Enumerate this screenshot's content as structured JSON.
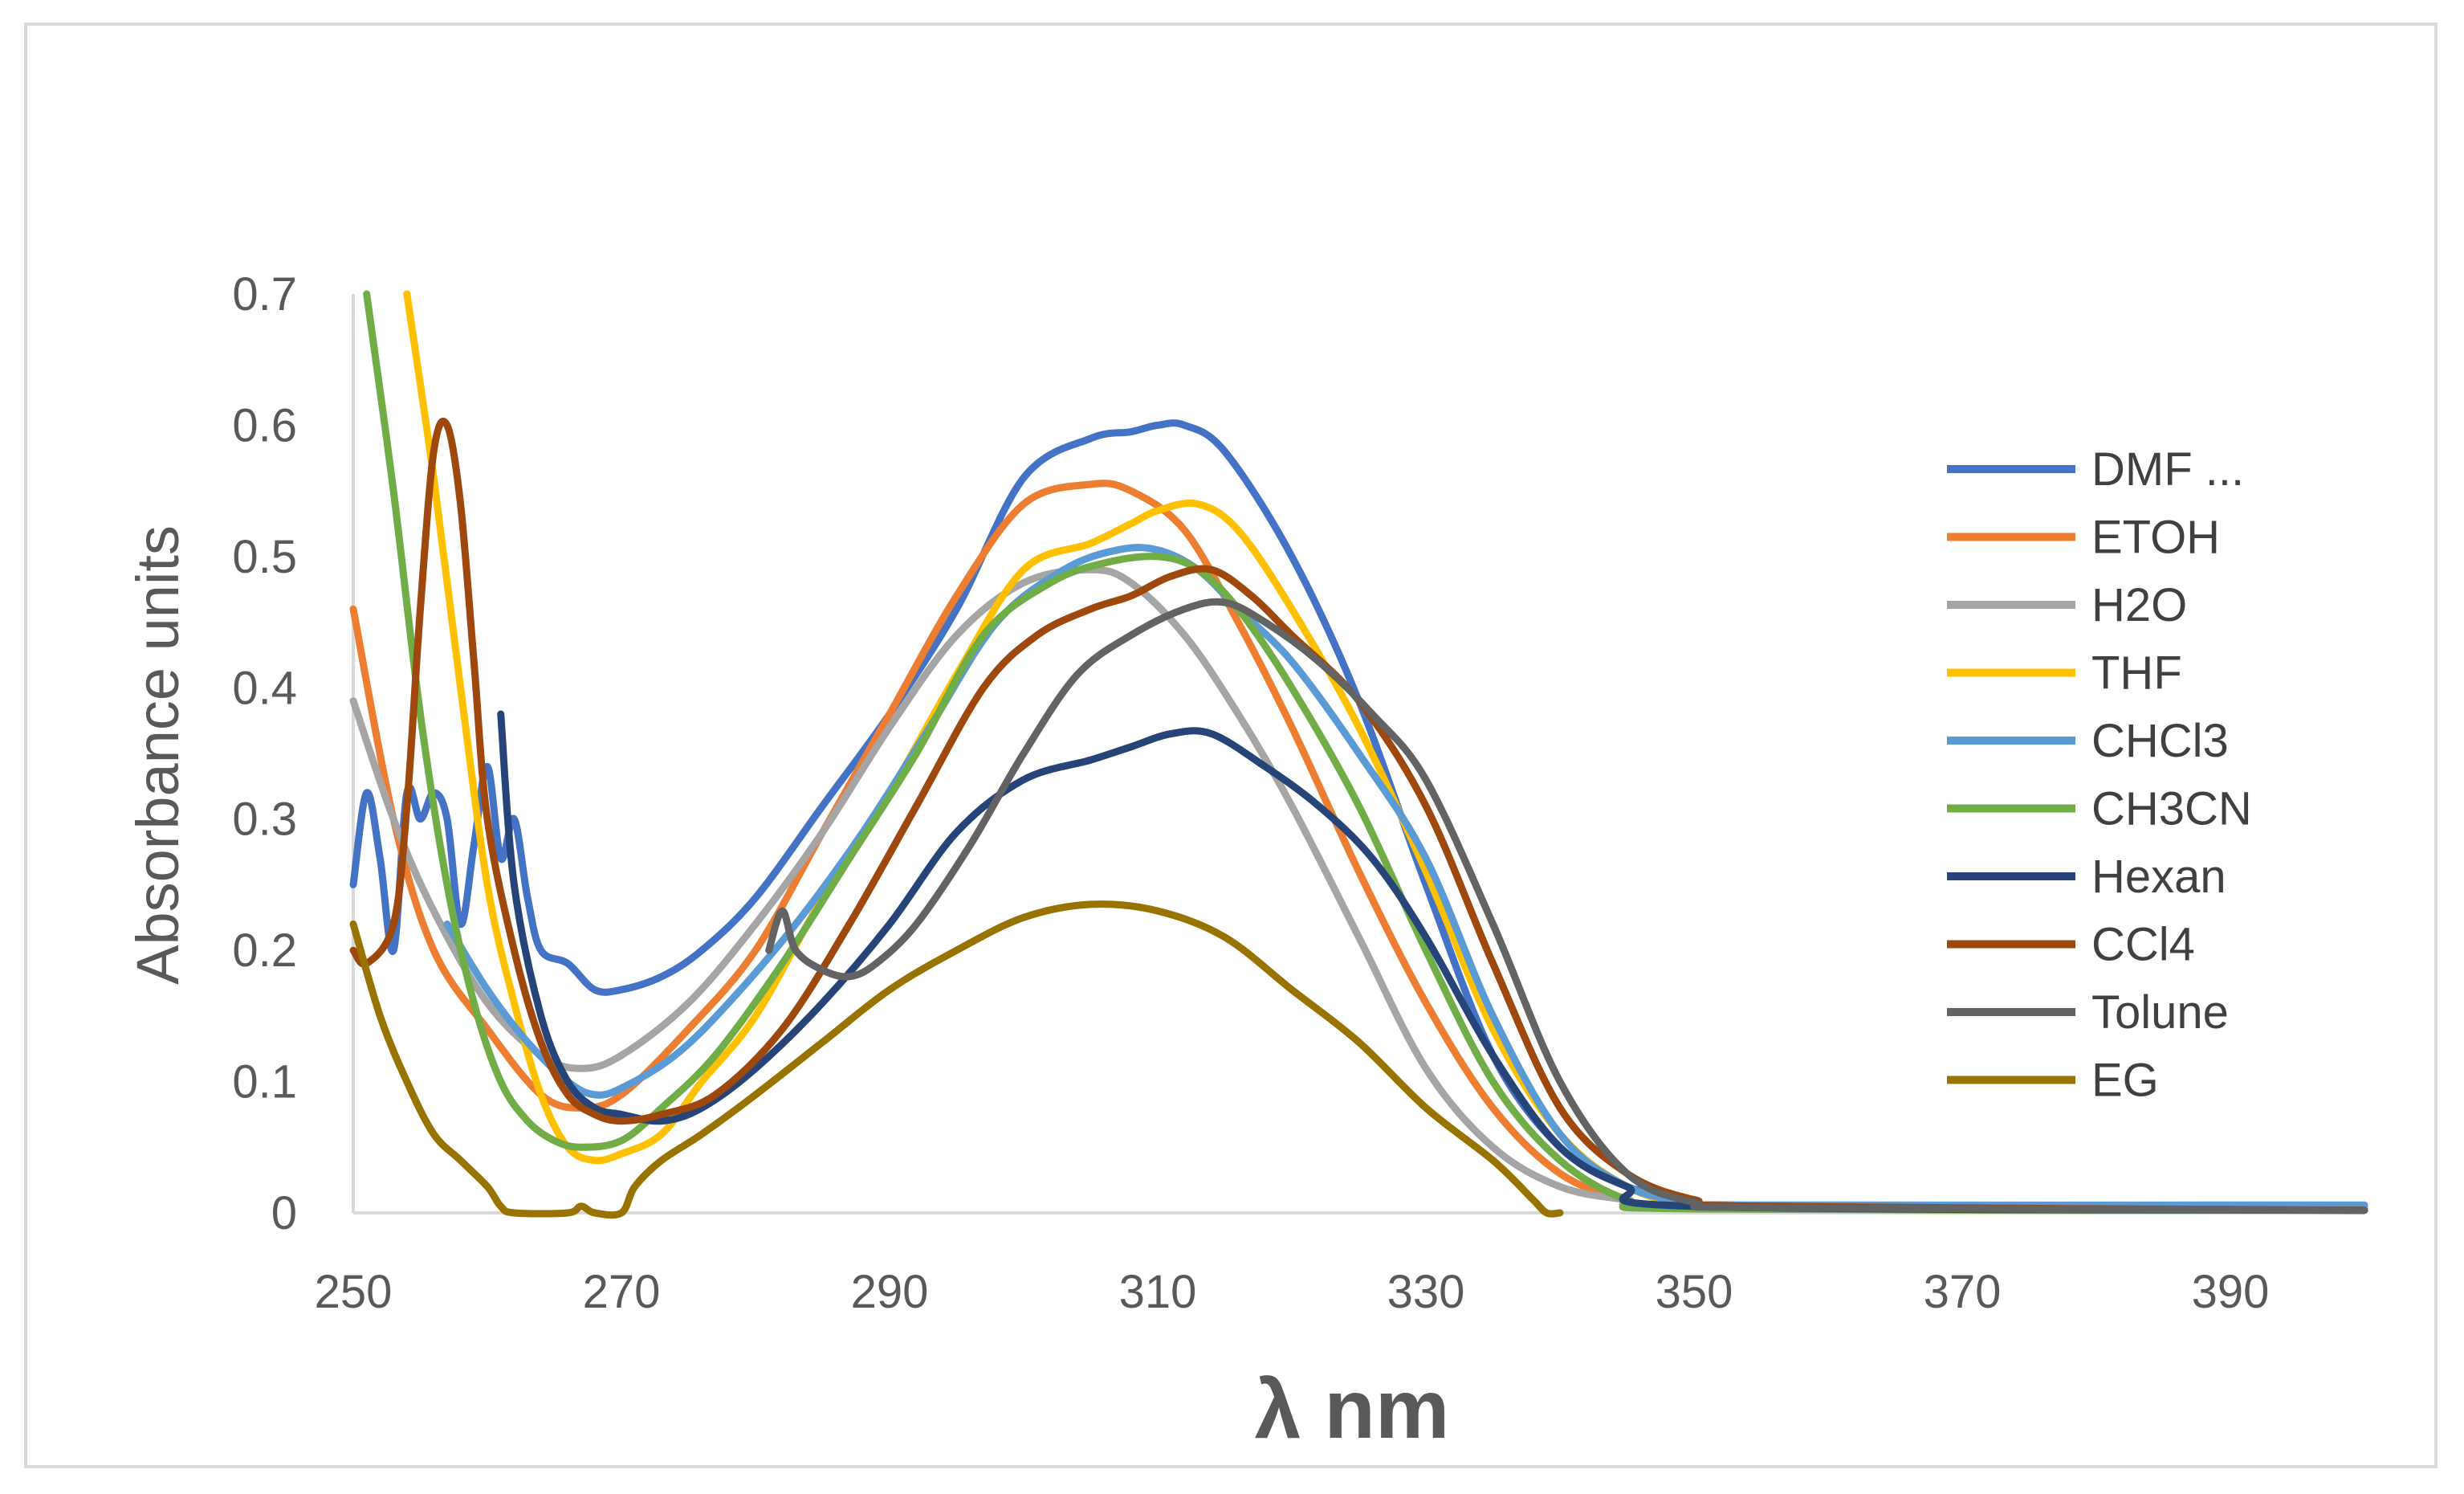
{
  "chart_data": {
    "type": "line",
    "title": "",
    "xlabel": "λ nm",
    "ylabel": "Absorbance units",
    "xlim": [
      250,
      400
    ],
    "ylim": [
      0,
      0.7
    ],
    "xticks": [
      250,
      270,
      290,
      310,
      330,
      350,
      370,
      390
    ],
    "yticks": [
      0,
      0.1,
      0.2,
      0.3,
      0.4,
      0.5,
      0.6,
      0.7
    ],
    "xtick_labels": [
      "250",
      "270",
      "290",
      "310",
      "330",
      "350",
      "370",
      "390"
    ],
    "ytick_labels": [
      "0",
      "0.1",
      "0.2",
      "0.3",
      "0.4",
      "0.5",
      "0.6",
      "0.7"
    ],
    "legend_position": "right",
    "series": [
      {
        "name": "DMF ...",
        "color": "#4472C4",
        "points": [
          [
            250,
            0.25
          ],
          [
            251,
            0.32
          ],
          [
            252,
            0.27
          ],
          [
            253,
            0.2
          ],
          [
            254,
            0.32
          ],
          [
            255,
            0.3
          ],
          [
            256,
            0.32
          ],
          [
            257,
            0.3
          ],
          [
            258,
            0.22
          ],
          [
            259,
            0.28
          ],
          [
            260,
            0.34
          ],
          [
            261,
            0.27
          ],
          [
            262,
            0.3
          ],
          [
            263,
            0.24
          ],
          [
            264,
            0.2
          ],
          [
            266,
            0.19
          ],
          [
            268,
            0.17
          ],
          [
            270,
            0.17
          ],
          [
            273,
            0.18
          ],
          [
            276,
            0.2
          ],
          [
            280,
            0.24
          ],
          [
            285,
            0.31
          ],
          [
            290,
            0.38
          ],
          [
            295,
            0.46
          ],
          [
            300,
            0.56
          ],
          [
            305,
            0.59
          ],
          [
            308,
            0.595
          ],
          [
            310,
            0.6
          ],
          [
            312,
            0.6
          ],
          [
            315,
            0.58
          ],
          [
            320,
            0.5
          ],
          [
            325,
            0.39
          ],
          [
            330,
            0.25
          ],
          [
            335,
            0.12
          ],
          [
            340,
            0.05
          ],
          [
            345,
            0.02
          ],
          [
            350,
            0.01
          ],
          [
            355,
            0.005
          ],
          [
            400,
            0.005
          ]
        ]
      },
      {
        "name": "ETOH",
        "color": "#ED7D31",
        "points": [
          [
            250,
            0.46
          ],
          [
            253,
            0.3
          ],
          [
            256,
            0.2
          ],
          [
            260,
            0.14
          ],
          [
            264,
            0.09
          ],
          [
            267,
            0.08
          ],
          [
            270,
            0.09
          ],
          [
            275,
            0.14
          ],
          [
            280,
            0.2
          ],
          [
            285,
            0.29
          ],
          [
            290,
            0.38
          ],
          [
            295,
            0.47
          ],
          [
            300,
            0.54
          ],
          [
            305,
            0.555
          ],
          [
            308,
            0.55
          ],
          [
            312,
            0.52
          ],
          [
            316,
            0.45
          ],
          [
            320,
            0.37
          ],
          [
            325,
            0.26
          ],
          [
            330,
            0.16
          ],
          [
            335,
            0.08
          ],
          [
            340,
            0.03
          ],
          [
            345,
            0.01
          ],
          [
            350,
            0.005
          ],
          [
            400,
            0.003
          ]
        ]
      },
      {
        "name": "H2O",
        "color": "#A5A5A5",
        "points": [
          [
            250,
            0.39
          ],
          [
            253,
            0.3
          ],
          [
            256,
            0.23
          ],
          [
            260,
            0.16
          ],
          [
            264,
            0.12
          ],
          [
            267,
            0.11
          ],
          [
            270,
            0.12
          ],
          [
            275,
            0.16
          ],
          [
            280,
            0.22
          ],
          [
            285,
            0.29
          ],
          [
            290,
            0.37
          ],
          [
            295,
            0.44
          ],
          [
            300,
            0.48
          ],
          [
            305,
            0.49
          ],
          [
            308,
            0.48
          ],
          [
            312,
            0.44
          ],
          [
            316,
            0.38
          ],
          [
            320,
            0.31
          ],
          [
            325,
            0.21
          ],
          [
            330,
            0.11
          ],
          [
            335,
            0.05
          ],
          [
            340,
            0.02
          ],
          [
            345,
            0.01
          ],
          [
            350,
            0.005
          ],
          [
            400,
            0.003
          ]
        ]
      },
      {
        "name": "THF",
        "color": "#FFC000",
        "points": [
          [
            254,
            0.7
          ],
          [
            256,
            0.56
          ],
          [
            258,
            0.4
          ],
          [
            260,
            0.25
          ],
          [
            262,
            0.16
          ],
          [
            264,
            0.09
          ],
          [
            266,
            0.05
          ],
          [
            268,
            0.04
          ],
          [
            270,
            0.045
          ],
          [
            273,
            0.06
          ],
          [
            276,
            0.1
          ],
          [
            280,
            0.15
          ],
          [
            285,
            0.24
          ],
          [
            290,
            0.32
          ],
          [
            295,
            0.41
          ],
          [
            300,
            0.49
          ],
          [
            305,
            0.51
          ],
          [
            308,
            0.525
          ],
          [
            310,
            0.535
          ],
          [
            313,
            0.54
          ],
          [
            316,
            0.52
          ],
          [
            320,
            0.46
          ],
          [
            325,
            0.37
          ],
          [
            330,
            0.26
          ],
          [
            335,
            0.14
          ],
          [
            340,
            0.06
          ],
          [
            345,
            0.02
          ],
          [
            350,
            0.005
          ],
          [
            355,
            0.003
          ],
          [
            400,
            0.003
          ]
        ]
      },
      {
        "name": "CHCl3",
        "color": "#5B9BD5",
        "points": [
          [
            257,
            0.22
          ],
          [
            260,
            0.17
          ],
          [
            263,
            0.13
          ],
          [
            266,
            0.1
          ],
          [
            268,
            0.09
          ],
          [
            270,
            0.095
          ],
          [
            274,
            0.12
          ],
          [
            278,
            0.16
          ],
          [
            283,
            0.22
          ],
          [
            288,
            0.29
          ],
          [
            293,
            0.37
          ],
          [
            298,
            0.45
          ],
          [
            303,
            0.49
          ],
          [
            307,
            0.505
          ],
          [
            310,
            0.505
          ],
          [
            313,
            0.49
          ],
          [
            316,
            0.46
          ],
          [
            320,
            0.42
          ],
          [
            325,
            0.35
          ],
          [
            330,
            0.27
          ],
          [
            335,
            0.15
          ],
          [
            340,
            0.06
          ],
          [
            345,
            0.02
          ],
          [
            350,
            0.008
          ],
          [
            355,
            0.006
          ],
          [
            400,
            0.006
          ]
        ]
      },
      {
        "name": "CH3CN",
        "color": "#70AD47",
        "points": [
          [
            251,
            0.7
          ],
          [
            253,
            0.55
          ],
          [
            255,
            0.38
          ],
          [
            257,
            0.25
          ],
          [
            259,
            0.16
          ],
          [
            261,
            0.1
          ],
          [
            263,
            0.07
          ],
          [
            265,
            0.055
          ],
          [
            267,
            0.05
          ],
          [
            270,
            0.055
          ],
          [
            273,
            0.08
          ],
          [
            277,
            0.12
          ],
          [
            282,
            0.19
          ],
          [
            287,
            0.27
          ],
          [
            292,
            0.35
          ],
          [
            297,
            0.44
          ],
          [
            302,
            0.48
          ],
          [
            306,
            0.495
          ],
          [
            310,
            0.5
          ],
          [
            313,
            0.49
          ],
          [
            316,
            0.46
          ],
          [
            320,
            0.4
          ],
          [
            325,
            0.31
          ],
          [
            330,
            0.2
          ],
          [
            335,
            0.1
          ],
          [
            340,
            0.04
          ],
          [
            345,
            0.01
          ],
          [
            350,
            0.003
          ],
          [
            400,
            0.002
          ]
        ]
      },
      {
        "name": "Hexan",
        "color": "#264478",
        "points": [
          [
            261,
            0.38
          ],
          [
            262,
            0.25
          ],
          [
            264,
            0.15
          ],
          [
            266,
            0.1
          ],
          [
            268,
            0.08
          ],
          [
            270,
            0.075
          ],
          [
            273,
            0.07
          ],
          [
            276,
            0.08
          ],
          [
            280,
            0.11
          ],
          [
            285,
            0.16
          ],
          [
            290,
            0.22
          ],
          [
            295,
            0.29
          ],
          [
            300,
            0.33
          ],
          [
            305,
            0.345
          ],
          [
            308,
            0.355
          ],
          [
            311,
            0.365
          ],
          [
            314,
            0.365
          ],
          [
            318,
            0.34
          ],
          [
            322,
            0.31
          ],
          [
            326,
            0.27
          ],
          [
            330,
            0.21
          ],
          [
            335,
            0.12
          ],
          [
            340,
            0.05
          ],
          [
            345,
            0.02
          ],
          [
            350,
            0.005
          ],
          [
            400,
            0.002
          ]
        ]
      },
      {
        "name": "CCl4",
        "color": "#9E480E",
        "points": [
          [
            250,
            0.2
          ],
          [
            251,
            0.19
          ],
          [
            253,
            0.22
          ],
          [
            254,
            0.31
          ],
          [
            255,
            0.46
          ],
          [
            256,
            0.58
          ],
          [
            257,
            0.6
          ],
          [
            258,
            0.54
          ],
          [
            259,
            0.42
          ],
          [
            260,
            0.3
          ],
          [
            262,
            0.2
          ],
          [
            264,
            0.13
          ],
          [
            266,
            0.09
          ],
          [
            268,
            0.075
          ],
          [
            270,
            0.07
          ],
          [
            273,
            0.075
          ],
          [
            277,
            0.09
          ],
          [
            282,
            0.14
          ],
          [
            287,
            0.22
          ],
          [
            292,
            0.31
          ],
          [
            297,
            0.4
          ],
          [
            301,
            0.44
          ],
          [
            305,
            0.46
          ],
          [
            308,
            0.47
          ],
          [
            311,
            0.485
          ],
          [
            314,
            0.49
          ],
          [
            317,
            0.47
          ],
          [
            320,
            0.44
          ],
          [
            325,
            0.39
          ],
          [
            330,
            0.31
          ],
          [
            335,
            0.19
          ],
          [
            340,
            0.08
          ],
          [
            345,
            0.03
          ],
          [
            350,
            0.01
          ],
          [
            355,
            0.005
          ],
          [
            400,
            0.002
          ]
        ]
      },
      {
        "name": "Tolune",
        "color": "#636363",
        "points": [
          [
            281,
            0.2
          ],
          [
            282,
            0.23
          ],
          [
            283,
            0.2
          ],
          [
            285,
            0.185
          ],
          [
            287,
            0.18
          ],
          [
            289,
            0.19
          ],
          [
            292,
            0.22
          ],
          [
            296,
            0.28
          ],
          [
            300,
            0.35
          ],
          [
            304,
            0.41
          ],
          [
            308,
            0.44
          ],
          [
            312,
            0.46
          ],
          [
            315,
            0.465
          ],
          [
            318,
            0.45
          ],
          [
            322,
            0.42
          ],
          [
            326,
            0.38
          ],
          [
            330,
            0.33
          ],
          [
            335,
            0.22
          ],
          [
            340,
            0.1
          ],
          [
            345,
            0.03
          ],
          [
            350,
            0.008
          ],
          [
            355,
            0.004
          ],
          [
            400,
            0.002
          ]
        ]
      },
      {
        "name": "EG",
        "color": "#997300",
        "points": [
          [
            250,
            0.22
          ],
          [
            252,
            0.15
          ],
          [
            254,
            0.1
          ],
          [
            256,
            0.06
          ],
          [
            258,
            0.04
          ],
          [
            260,
            0.02
          ],
          [
            261,
            0.005
          ],
          [
            262,
            0.0
          ],
          [
            266,
            0.0
          ],
          [
            267,
            0.005
          ],
          [
            268,
            0.0
          ],
          [
            270,
            0.0
          ],
          [
            271,
            0.02
          ],
          [
            273,
            0.04
          ],
          [
            276,
            0.06
          ],
          [
            280,
            0.09
          ],
          [
            285,
            0.13
          ],
          [
            290,
            0.17
          ],
          [
            295,
            0.2
          ],
          [
            300,
            0.225
          ],
          [
            305,
            0.235
          ],
          [
            310,
            0.23
          ],
          [
            315,
            0.21
          ],
          [
            320,
            0.17
          ],
          [
            325,
            0.13
          ],
          [
            330,
            0.08
          ],
          [
            335,
            0.04
          ],
          [
            338,
            0.01
          ],
          [
            339,
            0.0
          ],
          [
            340,
            0.0
          ]
        ]
      }
    ]
  }
}
